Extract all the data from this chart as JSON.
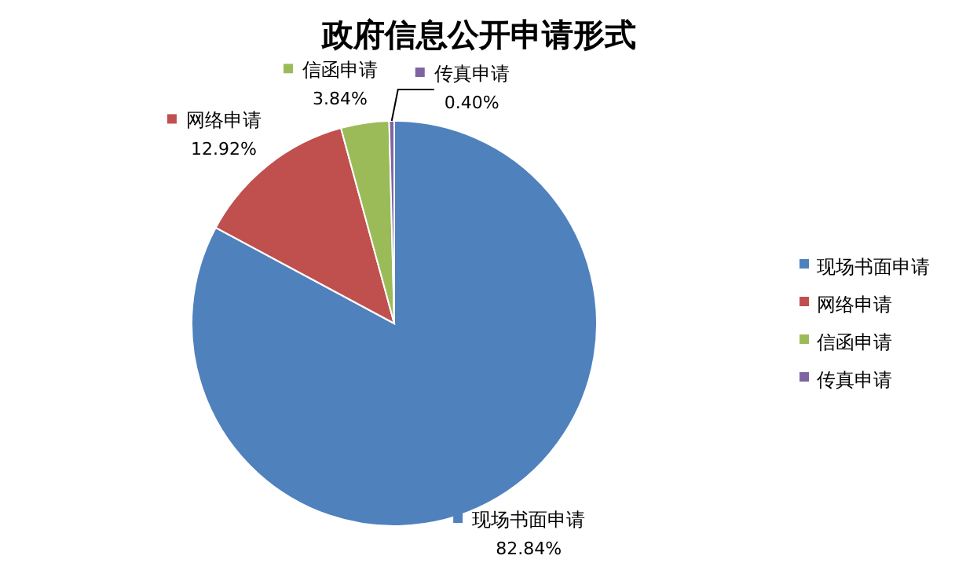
{
  "chart_data": {
    "type": "pie",
    "title": "政府信息公开申请形式",
    "categories": [
      "现场书面申请",
      "网络申请",
      "信函申请",
      "传真申请"
    ],
    "values": [
      82.84,
      12.92,
      3.84,
      0.4
    ],
    "value_labels": [
      "82.84%",
      "12.92%",
      "3.84%",
      "0.40%"
    ],
    "colors": [
      "#4f81bd",
      "#c0504d",
      "#9bbb59",
      "#8064a2"
    ],
    "legend": "right"
  }
}
